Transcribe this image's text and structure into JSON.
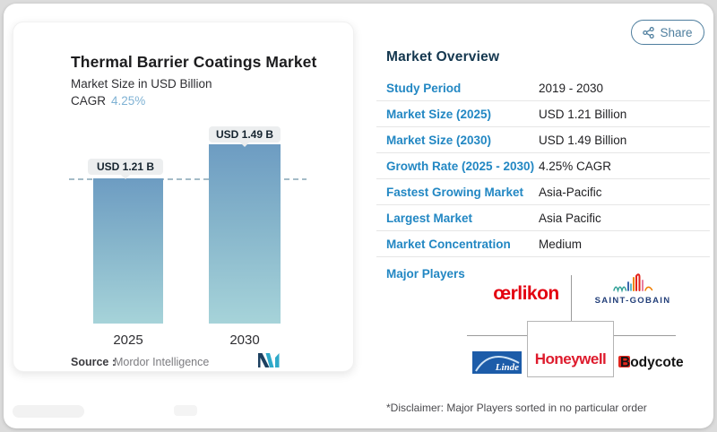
{
  "page": {
    "share_label": "Share"
  },
  "chart": {
    "title": "Thermal Barrier Coatings Market",
    "subtitle": "Market Size in USD Billion",
    "cagr_label": "CAGR",
    "cagr_value": "4.25%",
    "source_label": "Source :",
    "source_value": "Mordor Intelligence"
  },
  "chart_data": {
    "type": "bar",
    "title": "Thermal Barrier Coatings Market",
    "subtitle": "Market Size in USD Billion",
    "cagr": "4.25%",
    "categories": [
      "2025",
      "2030"
    ],
    "values": [
      1.21,
      1.49
    ],
    "unit": "USD Billion",
    "bar_labels": [
      "USD 1.21 B",
      "USD 1.49 B"
    ],
    "ylim": [
      0,
      1.7
    ],
    "reference_line": 1.21,
    "grid": false,
    "legend": "none",
    "bar_color_top": "#6d9cc2",
    "bar_color_bottom": "#a6d3d9",
    "reference_line_color": "#a4bbc7"
  },
  "overview": {
    "heading": "Market Overview",
    "rows": [
      {
        "label": "Study Period",
        "value": "2019 - 2030"
      },
      {
        "label": "Market Size (2025)",
        "value": "USD 1.21 Billion"
      },
      {
        "label": "Market Size (2030)",
        "value": "USD 1.49 Billion"
      },
      {
        "label": "Growth Rate (2025 - 2030)",
        "value": "4.25% CAGR"
      },
      {
        "label": "Fastest Growing Market",
        "value": "Asia-Pacific"
      },
      {
        "label": "Largest Market",
        "value": "Asia Pacific"
      },
      {
        "label": "Market Concentration",
        "value": "Medium"
      }
    ],
    "major_players_label": "Major Players",
    "players": [
      "oerlikon",
      "Saint-Gobain",
      "Linde",
      "Honeywell",
      "Bodycote"
    ],
    "disclaimer": "*Disclaimer: Major Players sorted in no particular order"
  },
  "logos": {
    "oerlikon": "œrlikon",
    "saint_gobain": "SAINT-GOBAIN",
    "linde": "Linde",
    "honeywell": "Honeywell",
    "bodycote_initial": "B",
    "bodycote_rest": "odycote"
  },
  "colors": {
    "accent_blue": "#2287c3",
    "heading_navy": "#14374f",
    "share_blue": "#4e7e9e",
    "cagr_light_blue": "#7fb2d4",
    "oerlikon_red": "#e3000f",
    "honeywell_red": "#de1b2d",
    "saint_gobain_navy": "#24407a",
    "linde_blue": "#1c5ca9",
    "bodycote_red": "#e1261d"
  }
}
